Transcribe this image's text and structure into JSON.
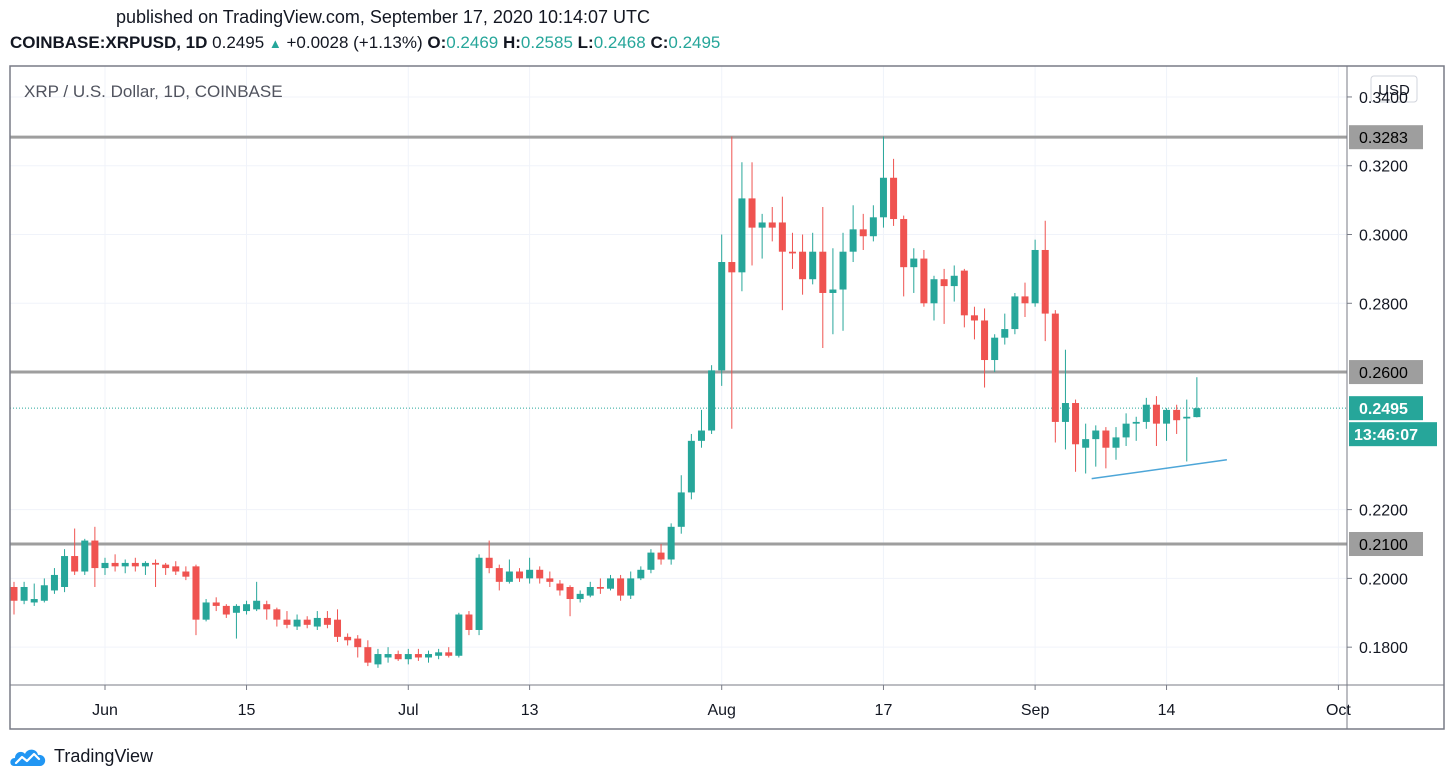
{
  "header": {
    "published": "published on TradingView.com, September 17, 2020 10:14:07 UTC",
    "symbol": "COINBASE:XRPUSD, 1D",
    "last": "0.2495",
    "change_arrow": "▲",
    "change": "+0.0028 (+1.13%)",
    "open_label": "O:",
    "open": "0.2469",
    "high_label": "H:",
    "high": "0.2585",
    "low_label": "L:",
    "low": "0.2468",
    "close_label": "C:",
    "close": "0.2495"
  },
  "chart_data": {
    "type": "candlestick",
    "title": "XRP / U.S. Dollar, 1D, COINBASE",
    "currency_button": "USD",
    "y_range": [
      0.169,
      0.349
    ],
    "y_ticks": [
      {
        "value": 0.34,
        "label": "0.3400"
      },
      {
        "value": 0.32,
        "label": "0.3200"
      },
      {
        "value": 0.3,
        "label": "0.3000"
      },
      {
        "value": 0.28,
        "label": "0.2800"
      },
      {
        "value": 0.22,
        "label": "0.2200"
      },
      {
        "value": 0.2,
        "label": "0.2000"
      },
      {
        "value": 0.18,
        "label": "0.1800"
      }
    ],
    "x_ticks": [
      {
        "date": "2020-06-01",
        "label": "Jun"
      },
      {
        "date": "2020-06-15",
        "label": "15"
      },
      {
        "date": "2020-07-01",
        "label": "Jul"
      },
      {
        "date": "2020-07-13",
        "label": "13"
      },
      {
        "date": "2020-08-01",
        "label": "Aug"
      },
      {
        "date": "2020-08-17",
        "label": "17"
      },
      {
        "date": "2020-09-01",
        "label": "Sep"
      },
      {
        "date": "2020-09-14",
        "label": "14"
      },
      {
        "date": "2020-10-01",
        "label": "Oct"
      }
    ],
    "horizontal_levels": [
      {
        "value": 0.3283,
        "label": "0.3283"
      },
      {
        "value": 0.26,
        "label": "0.2600"
      },
      {
        "value": 0.21,
        "label": "0.2100"
      }
    ],
    "last_price": {
      "value": 0.2495,
      "label": "0.2495",
      "countdown": "13:46:07"
    },
    "trendline": {
      "from": {
        "date": "2020-09-06",
        "value": 0.229
      },
      "to": {
        "date": "2020-09-17",
        "value": 0.2345
      }
    },
    "candle_columns": [
      "date",
      "open",
      "high",
      "low",
      "close"
    ],
    "candles": [
      [
        "2020-05-23",
        0.1975,
        0.199,
        0.1895,
        0.1935
      ],
      [
        "2020-05-24",
        0.1935,
        0.199,
        0.1925,
        0.1975
      ],
      [
        "2020-05-25",
        0.193,
        0.1985,
        0.192,
        0.194
      ],
      [
        "2020-05-26",
        0.1935,
        0.2,
        0.193,
        0.198
      ],
      [
        "2020-05-27",
        0.1965,
        0.203,
        0.1955,
        0.201
      ],
      [
        "2020-05-28",
        0.1975,
        0.2085,
        0.196,
        0.2065
      ],
      [
        "2020-05-29",
        0.2065,
        0.2145,
        0.201,
        0.202
      ],
      [
        "2020-05-30",
        0.202,
        0.2115,
        0.201,
        0.211
      ],
      [
        "2020-05-31",
        0.211,
        0.215,
        0.1975,
        0.203
      ],
      [
        "2020-06-01",
        0.203,
        0.206,
        0.201,
        0.2045
      ],
      [
        "2020-06-02",
        0.2045,
        0.207,
        0.202,
        0.2035
      ],
      [
        "2020-06-03",
        0.2035,
        0.2055,
        0.2015,
        0.2045
      ],
      [
        "2020-06-04",
        0.2045,
        0.206,
        0.202,
        0.2035
      ],
      [
        "2020-06-05",
        0.2035,
        0.205,
        0.201,
        0.2045
      ],
      [
        "2020-06-06",
        0.2045,
        0.2055,
        0.1975,
        0.204
      ],
      [
        "2020-06-07",
        0.204,
        0.2045,
        0.201,
        0.203
      ],
      [
        "2020-06-08",
        0.2035,
        0.205,
        0.201,
        0.202
      ],
      [
        "2020-06-09",
        0.202,
        0.2035,
        0.1995,
        0.2005
      ],
      [
        "2020-06-10",
        0.2035,
        0.204,
        0.1835,
        0.188
      ],
      [
        "2020-06-11",
        0.188,
        0.194,
        0.1875,
        0.193
      ],
      [
        "2020-06-12",
        0.193,
        0.1945,
        0.1905,
        0.192
      ],
      [
        "2020-06-13",
        0.192,
        0.1925,
        0.1885,
        0.1895
      ],
      [
        "2020-06-14",
        0.19,
        0.1925,
        0.1825,
        0.192
      ],
      [
        "2020-06-15",
        0.1905,
        0.1935,
        0.1895,
        0.1925
      ],
      [
        "2020-06-16",
        0.191,
        0.199,
        0.1905,
        0.1935
      ],
      [
        "2020-06-17",
        0.1925,
        0.1935,
        0.188,
        0.191
      ],
      [
        "2020-06-18",
        0.191,
        0.1915,
        0.186,
        0.188
      ],
      [
        "2020-06-19",
        0.188,
        0.1905,
        0.1855,
        0.1865
      ],
      [
        "2020-06-20",
        0.186,
        0.1895,
        0.185,
        0.188
      ],
      [
        "2020-06-21",
        0.188,
        0.189,
        0.1855,
        0.1865
      ],
      [
        "2020-06-22",
        0.186,
        0.1905,
        0.185,
        0.1885
      ],
      [
        "2020-06-23",
        0.1885,
        0.1905,
        0.1855,
        0.1865
      ],
      [
        "2020-06-24",
        0.188,
        0.191,
        0.1815,
        0.183
      ],
      [
        "2020-06-25",
        0.183,
        0.184,
        0.1805,
        0.182
      ],
      [
        "2020-06-26",
        0.1825,
        0.1835,
        0.177,
        0.18
      ],
      [
        "2020-06-27",
        0.18,
        0.182,
        0.1745,
        0.1755
      ],
      [
        "2020-06-28",
        0.175,
        0.1795,
        0.174,
        0.178
      ],
      [
        "2020-06-29",
        0.177,
        0.18,
        0.1755,
        0.178
      ],
      [
        "2020-06-30",
        0.178,
        0.179,
        0.176,
        0.1765
      ],
      [
        "2020-07-01",
        0.1765,
        0.1795,
        0.175,
        0.178
      ],
      [
        "2020-07-02",
        0.178,
        0.1795,
        0.176,
        0.177
      ],
      [
        "2020-07-03",
        0.177,
        0.179,
        0.1755,
        0.178
      ],
      [
        "2020-07-04",
        0.1775,
        0.1795,
        0.1765,
        0.1785
      ],
      [
        "2020-07-05",
        0.1785,
        0.18,
        0.177,
        0.1775
      ],
      [
        "2020-07-06",
        0.1775,
        0.19,
        0.177,
        0.1895
      ],
      [
        "2020-07-07",
        0.1895,
        0.1905,
        0.1835,
        0.185
      ],
      [
        "2020-07-08",
        0.185,
        0.207,
        0.1835,
        0.206
      ],
      [
        "2020-07-09",
        0.206,
        0.211,
        0.2015,
        0.203
      ],
      [
        "2020-07-10",
        0.203,
        0.204,
        0.1965,
        0.199
      ],
      [
        "2020-07-11",
        0.199,
        0.2055,
        0.1985,
        0.202
      ],
      [
        "2020-07-12",
        0.202,
        0.203,
        0.199,
        0.2
      ],
      [
        "2020-07-13",
        0.2,
        0.206,
        0.1985,
        0.2025
      ],
      [
        "2020-07-14",
        0.2025,
        0.2035,
        0.1985,
        0.2
      ],
      [
        "2020-07-15",
        0.2,
        0.202,
        0.1975,
        0.199
      ],
      [
        "2020-07-16",
        0.1985,
        0.1995,
        0.195,
        0.1965
      ],
      [
        "2020-07-17",
        0.1975,
        0.198,
        0.189,
        0.194
      ],
      [
        "2020-07-18",
        0.194,
        0.1965,
        0.193,
        0.1955
      ],
      [
        "2020-07-19",
        0.195,
        0.199,
        0.1945,
        0.1975
      ],
      [
        "2020-07-20",
        0.1975,
        0.2,
        0.1955,
        0.197
      ],
      [
        "2020-07-21",
        0.197,
        0.201,
        0.1965,
        0.2
      ],
      [
        "2020-07-22",
        0.2,
        0.201,
        0.1935,
        0.195
      ],
      [
        "2020-07-23",
        0.195,
        0.202,
        0.194,
        0.2
      ],
      [
        "2020-07-24",
        0.2,
        0.2035,
        0.1995,
        0.2025
      ],
      [
        "2020-07-25",
        0.2025,
        0.2085,
        0.2015,
        0.2075
      ],
      [
        "2020-07-26",
        0.2075,
        0.21,
        0.204,
        0.2055
      ],
      [
        "2020-07-27",
        0.2055,
        0.216,
        0.204,
        0.215
      ],
      [
        "2020-07-28",
        0.215,
        0.23,
        0.213,
        0.225
      ],
      [
        "2020-07-29",
        0.225,
        0.242,
        0.223,
        0.24
      ],
      [
        "2020-07-30",
        0.24,
        0.249,
        0.238,
        0.243
      ],
      [
        "2020-07-31",
        0.243,
        0.262,
        0.242,
        0.2605
      ],
      [
        "2020-08-01",
        0.2605,
        0.3,
        0.256,
        0.292
      ],
      [
        "2020-08-02",
        0.292,
        0.3285,
        0.2435,
        0.289
      ],
      [
        "2020-08-03",
        0.289,
        0.321,
        0.2835,
        0.3105
      ],
      [
        "2020-08-04",
        0.3105,
        0.321,
        0.291,
        0.302
      ],
      [
        "2020-08-05",
        0.302,
        0.306,
        0.293,
        0.3035
      ],
      [
        "2020-08-06",
        0.3035,
        0.308,
        0.298,
        0.302
      ],
      [
        "2020-08-07",
        0.3035,
        0.311,
        0.278,
        0.295
      ],
      [
        "2020-08-08",
        0.295,
        0.3005,
        0.29,
        0.2945
      ],
      [
        "2020-08-09",
        0.295,
        0.3,
        0.2825,
        0.287
      ],
      [
        "2020-08-10",
        0.287,
        0.3005,
        0.2855,
        0.295
      ],
      [
        "2020-08-11",
        0.295,
        0.308,
        0.267,
        0.283
      ],
      [
        "2020-08-12",
        0.283,
        0.296,
        0.271,
        0.284
      ],
      [
        "2020-08-13",
        0.284,
        0.3005,
        0.272,
        0.295
      ],
      [
        "2020-08-14",
        0.295,
        0.3085,
        0.292,
        0.3015
      ],
      [
        "2020-08-15",
        0.3015,
        0.306,
        0.2955,
        0.2995
      ],
      [
        "2020-08-16",
        0.2995,
        0.3085,
        0.298,
        0.305
      ],
      [
        "2020-08-17",
        0.305,
        0.3285,
        0.302,
        0.3165
      ],
      [
        "2020-08-18",
        0.3165,
        0.322,
        0.3025,
        0.3045
      ],
      [
        "2020-08-19",
        0.3045,
        0.3055,
        0.282,
        0.2905
      ],
      [
        "2020-08-20",
        0.2905,
        0.296,
        0.283,
        0.293
      ],
      [
        "2020-08-21",
        0.293,
        0.2955,
        0.279,
        0.28
      ],
      [
        "2020-08-22",
        0.28,
        0.288,
        0.275,
        0.287
      ],
      [
        "2020-08-23",
        0.287,
        0.29,
        0.274,
        0.285
      ],
      [
        "2020-08-24",
        0.285,
        0.291,
        0.2805,
        0.288
      ],
      [
        "2020-08-25",
        0.2895,
        0.29,
        0.273,
        0.2765
      ],
      [
        "2020-08-26",
        0.2765,
        0.279,
        0.2695,
        0.275
      ],
      [
        "2020-08-27",
        0.275,
        0.2785,
        0.2555,
        0.2635
      ],
      [
        "2020-08-28",
        0.2635,
        0.271,
        0.26,
        0.27
      ],
      [
        "2020-08-29",
        0.27,
        0.277,
        0.268,
        0.2725
      ],
      [
        "2020-08-30",
        0.2725,
        0.283,
        0.271,
        0.282
      ],
      [
        "2020-08-31",
        0.282,
        0.286,
        0.276,
        0.28
      ],
      [
        "2020-09-01",
        0.28,
        0.2985,
        0.279,
        0.2955
      ],
      [
        "2020-09-02",
        0.2955,
        0.304,
        0.269,
        0.277
      ],
      [
        "2020-09-03",
        0.277,
        0.278,
        0.2395,
        0.2455
      ],
      [
        "2020-09-04",
        0.2455,
        0.2665,
        0.2375,
        0.251
      ],
      [
        "2020-09-05",
        0.251,
        0.252,
        0.231,
        0.239
      ],
      [
        "2020-09-06",
        0.238,
        0.245,
        0.2305,
        0.2405
      ],
      [
        "2020-09-07",
        0.2405,
        0.2445,
        0.2325,
        0.243
      ],
      [
        "2020-09-08",
        0.243,
        0.244,
        0.232,
        0.238
      ],
      [
        "2020-09-09",
        0.238,
        0.244,
        0.2345,
        0.241
      ],
      [
        "2020-09-10",
        0.241,
        0.248,
        0.2385,
        0.245
      ],
      [
        "2020-09-11",
        0.245,
        0.247,
        0.24,
        0.2455
      ],
      [
        "2020-09-12",
        0.2455,
        0.2525,
        0.2435,
        0.2505
      ],
      [
        "2020-09-13",
        0.2505,
        0.253,
        0.2385,
        0.245
      ],
      [
        "2020-09-14",
        0.245,
        0.2495,
        0.24,
        0.249
      ],
      [
        "2020-09-15",
        0.249,
        0.2505,
        0.242,
        0.246
      ],
      [
        "2020-09-16",
        0.2465,
        0.252,
        0.234,
        0.247
      ],
      [
        "2020-09-17",
        0.2469,
        0.2585,
        0.2468,
        0.2495
      ]
    ]
  },
  "colors": {
    "up": "#26a69a",
    "down": "#ef5350",
    "level_line": "#9e9e9e",
    "level_label_bg": "#9e9e9e",
    "trendline": "#4da6d8",
    "grid": "#f0f3fa",
    "frame": "#787b86"
  },
  "footer": {
    "brand": "TradingView",
    "logo_icon": "tradingview-cloud-icon"
  }
}
